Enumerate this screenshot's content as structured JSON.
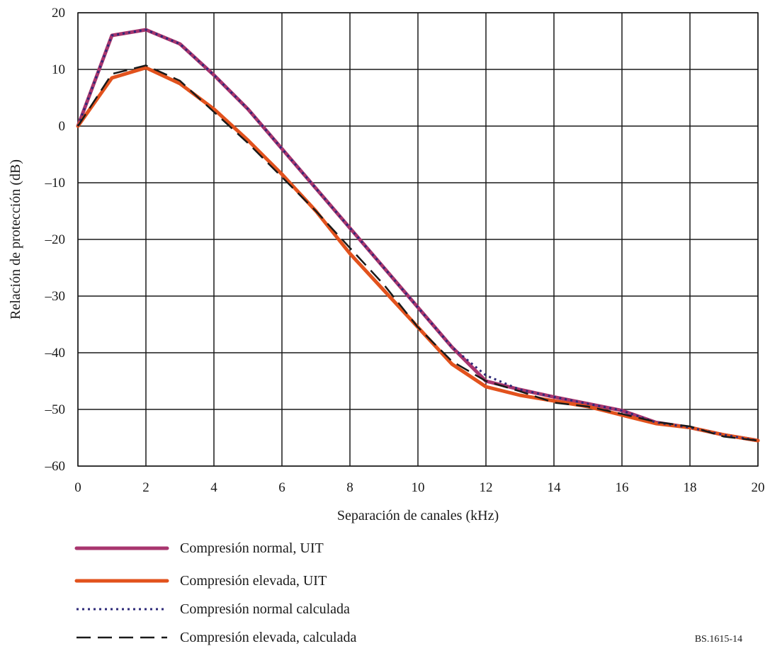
{
  "chart_data": {
    "type": "line",
    "xlabel": "Separación de canales (kHz)",
    "ylabel": "Relación de protección (dB)",
    "xlim": [
      0,
      20
    ],
    "ylim": [
      -60,
      20
    ],
    "x_ticks": [
      0,
      2,
      4,
      6,
      8,
      10,
      12,
      14,
      16,
      18,
      20
    ],
    "y_ticks": [
      20,
      10,
      0,
      -10,
      -20,
      -30,
      -40,
      -50,
      -60
    ],
    "x_tick_labels": [
      "0",
      "2",
      "4",
      "6",
      "8",
      "10",
      "12",
      "14",
      "16",
      "18",
      "20"
    ],
    "y_tick_labels": [
      "20",
      "10",
      "0",
      "–10",
      "–20",
      "–30",
      "–40",
      "–50",
      "–60"
    ],
    "grid": true,
    "legend_position": "below",
    "figure_id": "BS.1615-14",
    "x": [
      0,
      1,
      2,
      3,
      4,
      5,
      6,
      7,
      8,
      9,
      10,
      11,
      12,
      13,
      14,
      15,
      16,
      17,
      18,
      19,
      20
    ],
    "series": [
      {
        "name": "Compresión normal, UIT",
        "color": "#a8356e",
        "style": "solid-thick",
        "values": [
          0,
          16,
          17,
          14.5,
          9,
          3,
          -4,
          -11,
          -18,
          -25,
          -32,
          -39,
          -45,
          -46.5,
          -47.8,
          -49,
          -50.2,
          -52.3,
          -53.2,
          -54.5,
          -55.5
        ]
      },
      {
        "name": "Compresión elevada, UIT",
        "color": "#e2521d",
        "style": "solid-thick",
        "values": [
          0,
          8.5,
          10.3,
          7.5,
          3,
          -2.5,
          -8.5,
          -15,
          -22.5,
          -29,
          -35.5,
          -42,
          -46,
          -47.5,
          -48.5,
          -49.5,
          -51,
          -52.5,
          -53.2,
          -54.5,
          -55.5
        ]
      },
      {
        "name": "Compresión normal calculada",
        "color": "#2e2a78",
        "style": "dotted",
        "values": [
          0,
          16,
          17,
          14.5,
          9,
          3,
          -4,
          -11,
          -18,
          -25,
          -32,
          -39,
          -44,
          -46.5,
          -47.8,
          -49,
          -50.2,
          -52.3,
          -53.2,
          -54.5,
          -55.5
        ]
      },
      {
        "name": "Compresión elevada, calculada",
        "color": "#1a1a1a",
        "style": "dashed",
        "values": [
          0,
          9.2,
          10.7,
          8,
          2.5,
          -3,
          -9,
          -15,
          -21.5,
          -28,
          -35.5,
          -41.5,
          -45,
          -46.8,
          -48.8,
          -49.5,
          -50.8,
          -52.2,
          -53,
          -54.8,
          -55.5
        ]
      }
    ]
  }
}
